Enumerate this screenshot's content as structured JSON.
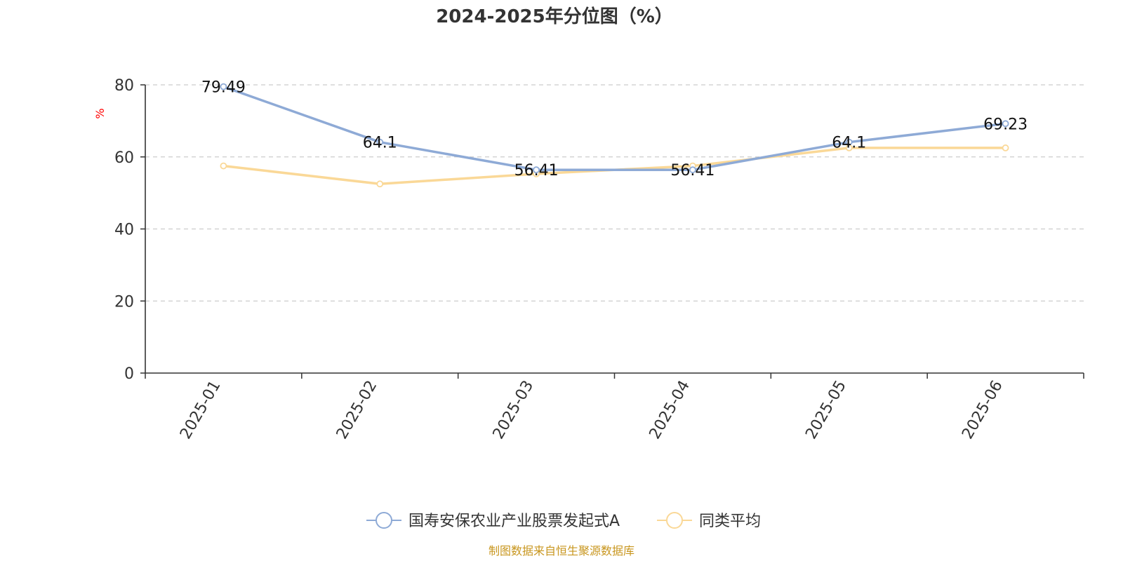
{
  "chart_data": {
    "type": "line",
    "title": "2024-2025年分位图（%）",
    "ylabel": "%",
    "xlabel": "",
    "categories": [
      "2025-01",
      "2025-02",
      "2025-03",
      "2025-04",
      "2025-05",
      "2025-06"
    ],
    "ylim": [
      0,
      80
    ],
    "yticks": [
      0,
      20,
      40,
      60,
      80
    ],
    "grid": true,
    "legend_position": "bottom",
    "series": [
      {
        "name": "国寿安保农业产业股票发起式A",
        "color": "#8eaad6",
        "values": [
          79.49,
          64.1,
          56.41,
          56.41,
          64.1,
          69.23
        ],
        "labels": [
          "79.49",
          "64.1",
          "56.41",
          "56.41",
          "64.1",
          "69.23"
        ]
      },
      {
        "name": "同类平均",
        "color": "#fad897",
        "values": [
          57.5,
          52.5,
          55.3,
          57.5,
          62.5,
          62.5
        ]
      }
    ]
  },
  "source_text": "制图数据来自恒生聚源数据库",
  "colors": {
    "unit_label": "#ff0000",
    "source_text": "#c8961e",
    "axis": "#333333",
    "grid": "#cccccc"
  }
}
